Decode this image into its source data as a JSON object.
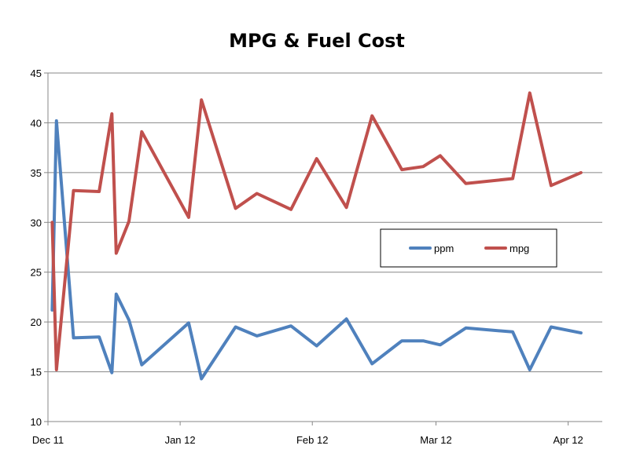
{
  "chart_data": {
    "type": "line",
    "title": "MPG & Fuel Cost",
    "xlabel": "",
    "ylabel": "",
    "ylim": [
      10,
      45
    ],
    "yticks": [
      "10",
      "15",
      "20",
      "25",
      "30",
      "35",
      "40",
      "45"
    ],
    "xlim": [
      0,
      130
    ],
    "xticks": [
      {
        "label": "Dec 11",
        "x": 0
      },
      {
        "label": "Jan 12",
        "x": 31
      },
      {
        "label": "Feb 12",
        "x": 62
      },
      {
        "label": "Mar 12",
        "x": 91
      },
      {
        "label": "Apr 12",
        "x": 122
      }
    ],
    "grid": true,
    "legend_position": "right-middle",
    "series": [
      {
        "name": "ppm",
        "color": "#4f81bd",
        "x": [
          1,
          2,
          6,
          12,
          15,
          16,
          19,
          22,
          33,
          36,
          44,
          49,
          57,
          63,
          70,
          76,
          83,
          88,
          92,
          98,
          109,
          113,
          118,
          125
        ],
        "y": [
          21.2,
          40.2,
          18.4,
          18.5,
          14.9,
          22.8,
          20.2,
          15.7,
          19.9,
          14.3,
          19.5,
          18.6,
          19.6,
          17.6,
          20.3,
          15.8,
          18.1,
          18.1,
          17.7,
          19.4,
          19.0,
          15.2,
          19.5,
          18.9
        ]
      },
      {
        "name": "mpg",
        "color": "#c0504d",
        "x": [
          1,
          2,
          6,
          12,
          15,
          16,
          19,
          22,
          33,
          36,
          44,
          49,
          57,
          63,
          70,
          76,
          83,
          88,
          92,
          98,
          109,
          113,
          118,
          125
        ],
        "y": [
          30.0,
          15.2,
          33.2,
          33.1,
          40.9,
          26.9,
          30.1,
          39.1,
          30.5,
          42.3,
          31.4,
          32.9,
          31.3,
          36.4,
          31.5,
          40.7,
          35.3,
          35.6,
          36.7,
          33.9,
          34.4,
          43.0,
          33.7,
          35.0
        ]
      }
    ]
  }
}
